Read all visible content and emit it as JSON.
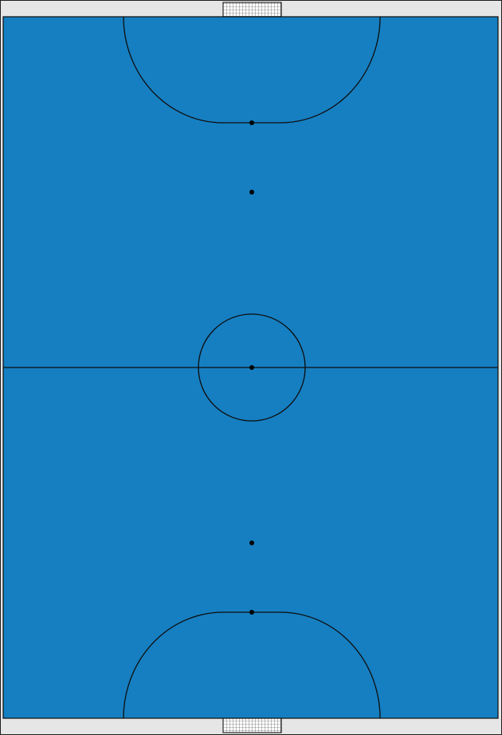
{
  "court": {
    "sport": "futsal",
    "orientation": "vertical",
    "colors": {
      "surround": "#e6e6e6",
      "border_outer": "#1f1f1f",
      "playing_surface": "#167fc1",
      "lines": "#0d0d0d",
      "goal_net": "#ffffff",
      "goal_frame": "#000000"
    },
    "markings": [
      "touchlines",
      "goal-lines",
      "halfway-line",
      "centre-circle",
      "centre-spot",
      "penalty-area-top",
      "penalty-mark-top",
      "second-penalty-mark-top",
      "penalty-area-bottom",
      "penalty-mark-bottom",
      "second-penalty-mark-bottom",
      "goal-top",
      "goal-bottom"
    ]
  }
}
